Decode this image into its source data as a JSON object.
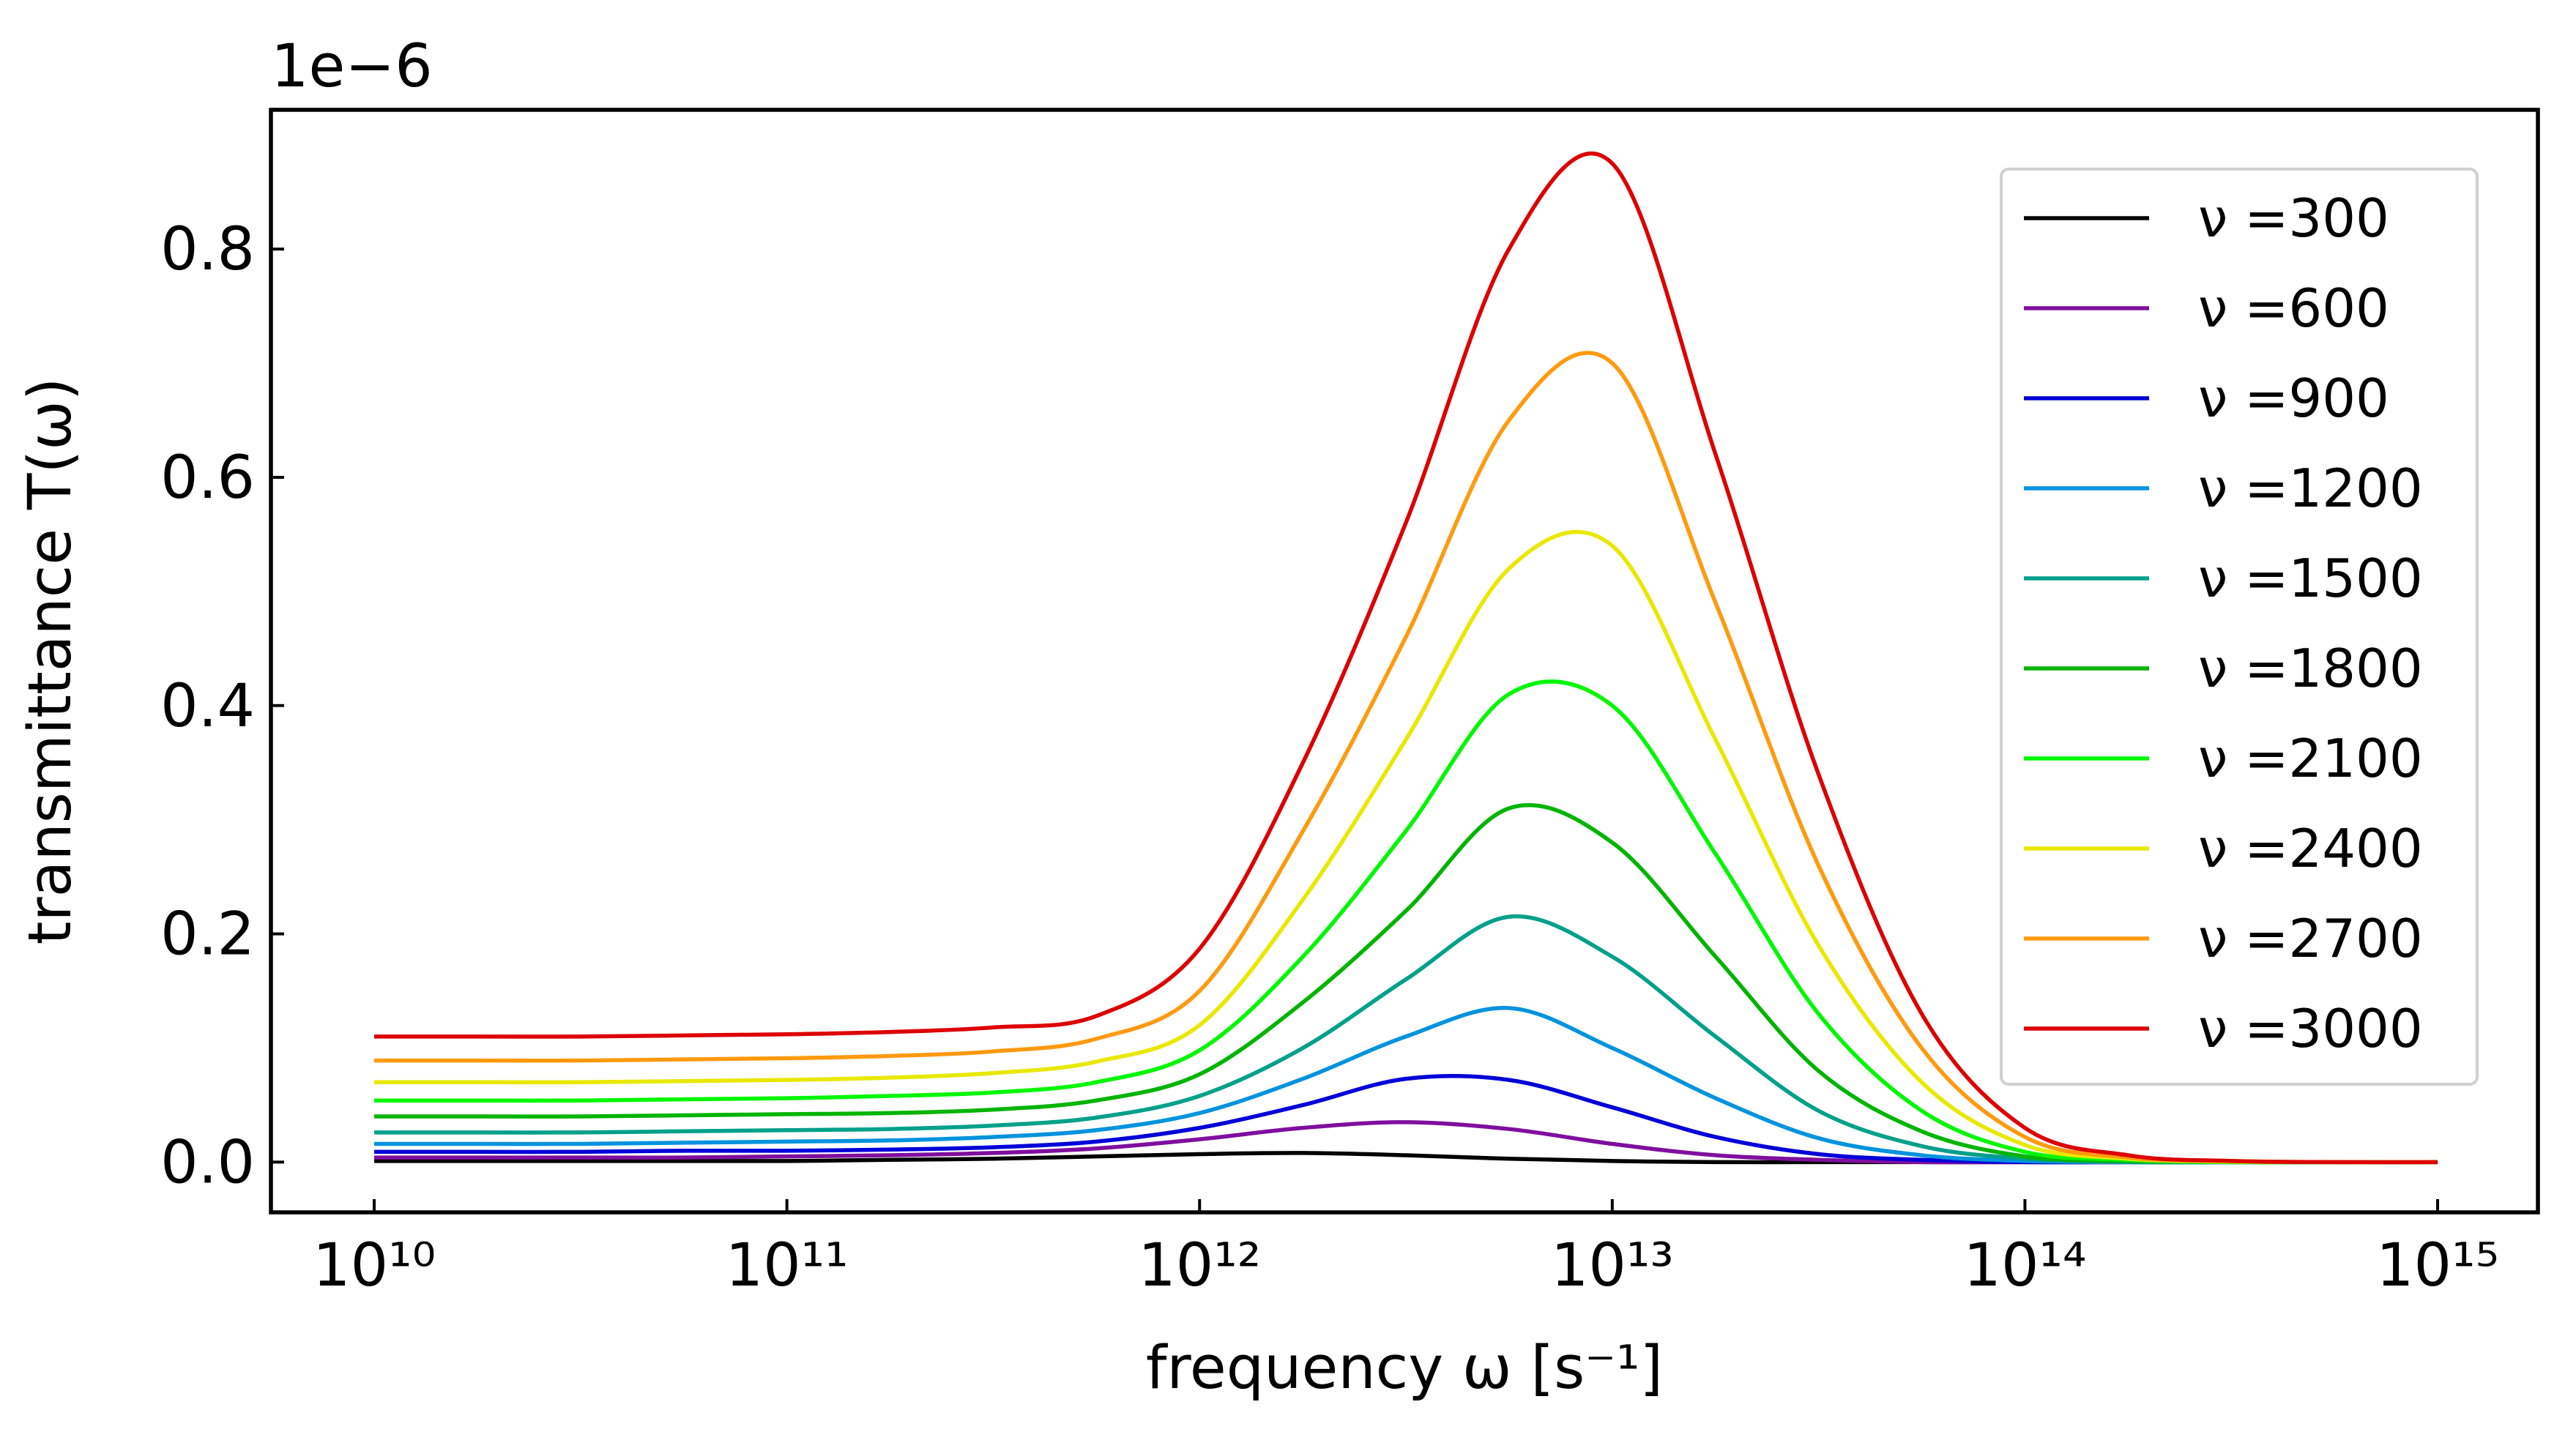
{
  "chart_data": {
    "type": "line",
    "xlabel": "frequency ω [s⁻¹]",
    "ylabel": "transmittance T(ω)",
    "y_offset_label": "1e−6",
    "xscale": "log",
    "xlim": [
      5620000000.0,
      1750000000000000.0
    ],
    "xticks": [
      {
        "value": 10000000000.0,
        "label": "10¹⁰"
      },
      {
        "value": 100000000000.0,
        "label": "10¹¹"
      },
      {
        "value": 1000000000000.0,
        "label": "10¹²"
      },
      {
        "value": 10000000000000.0,
        "label": "10¹³"
      },
      {
        "value": 100000000000000.0,
        "label": "10¹⁴"
      },
      {
        "value": 1000000000000000.0,
        "label": "10¹⁵"
      }
    ],
    "ylim": [
      -0.044,
      0.922
    ],
    "yticks": [
      {
        "value": 0,
        "label": "0.0"
      },
      0.2,
      0.4,
      0.6,
      0.8
    ],
    "grid": false,
    "legend": "upper right",
    "x": [
      10000000000.0,
      17800000000.0,
      31600000000.0,
      56200000000.0,
      100000000000.0,
      178000000000.0,
      316000000000.0,
      562000000000.0,
      1000000000000.0,
      1780000000000.0,
      3160000000000.0,
      5620000000000.0,
      10000000000000.0,
      17800000000000.0,
      31600000000000.0,
      56200000000000.0,
      100000000000000.0,
      178000000000000.0,
      316000000000000.0,
      562000000000000.0,
      1000000000000000.0
    ],
    "series": [
      {
        "name": "ν =300",
        "color": "#000000",
        "values": [
          0.001,
          0.001,
          0.001,
          0.001,
          0.001,
          0.002,
          0.003,
          0.005,
          0.007,
          0.008,
          0.006,
          0.003,
          0.001,
          0,
          0,
          0,
          0,
          0,
          0,
          0,
          0
        ]
      },
      {
        "name": "ν =600",
        "color": "#7f0f9e",
        "values": [
          0.004,
          0.004,
          0.004,
          0.004,
          0.005,
          0.006,
          0.008,
          0.012,
          0.02,
          0.03,
          0.035,
          0.029,
          0.016,
          0.006,
          0.002,
          0,
          0,
          0,
          0,
          0,
          0
        ]
      },
      {
        "name": "ν =900",
        "color": "#0000d8",
        "values": [
          0.009,
          0.009,
          0.009,
          0.01,
          0.01,
          0.011,
          0.013,
          0.018,
          0.03,
          0.05,
          0.073,
          0.072,
          0.048,
          0.022,
          0.007,
          0.002,
          0,
          0,
          0,
          0,
          0
        ]
      },
      {
        "name": "ν =1200",
        "color": "#0093dd",
        "values": [
          0.016,
          0.016,
          0.016,
          0.017,
          0.018,
          0.019,
          0.022,
          0.028,
          0.043,
          0.073,
          0.11,
          0.135,
          0.1,
          0.056,
          0.021,
          0.006,
          0.001,
          0,
          0,
          0,
          0
        ]
      },
      {
        "name": "ν =1500",
        "color": "#00a08a",
        "values": [
          0.026,
          0.026,
          0.026,
          0.027,
          0.028,
          0.029,
          0.032,
          0.039,
          0.058,
          0.1,
          0.16,
          0.215,
          0.18,
          0.11,
          0.045,
          0.014,
          0.003,
          0,
          0,
          0,
          0
        ]
      },
      {
        "name": "ν =1800",
        "color": "#00b400",
        "values": [
          0.04,
          0.04,
          0.04,
          0.041,
          0.042,
          0.043,
          0.046,
          0.054,
          0.077,
          0.14,
          0.22,
          0.31,
          0.28,
          0.18,
          0.08,
          0.027,
          0.005,
          0.001,
          0,
          0,
          0
        ]
      },
      {
        "name": "ν =2100",
        "color": "#00f700",
        "values": [
          0.054,
          0.054,
          0.054,
          0.055,
          0.056,
          0.058,
          0.061,
          0.07,
          0.098,
          0.18,
          0.29,
          0.41,
          0.4,
          0.27,
          0.13,
          0.045,
          0.009,
          0.002,
          0,
          0,
          0
        ]
      },
      {
        "name": "ν =2400",
        "color": "#e8e800",
        "values": [
          0.07,
          0.07,
          0.07,
          0.071,
          0.072,
          0.074,
          0.078,
          0.088,
          0.12,
          0.23,
          0.37,
          0.52,
          0.54,
          0.37,
          0.19,
          0.07,
          0.015,
          0.003,
          0.0005,
          0,
          0
        ]
      },
      {
        "name": "ν =2700",
        "color": "#ff9a0f",
        "values": [
          0.089,
          0.089,
          0.089,
          0.09,
          0.091,
          0.093,
          0.097,
          0.108,
          0.15,
          0.29,
          0.46,
          0.65,
          0.7,
          0.49,
          0.26,
          0.1,
          0.022,
          0.004,
          0.001,
          0,
          0
        ]
      },
      {
        "name": "ν =3000",
        "color": "#dd0000",
        "values": [
          0.11,
          0.11,
          0.11,
          0.111,
          0.112,
          0.114,
          0.118,
          0.128,
          0.187,
          0.35,
          0.56,
          0.8,
          0.875,
          0.62,
          0.34,
          0.13,
          0.03,
          0.006,
          0.001,
          0,
          0
        ]
      }
    ]
  }
}
